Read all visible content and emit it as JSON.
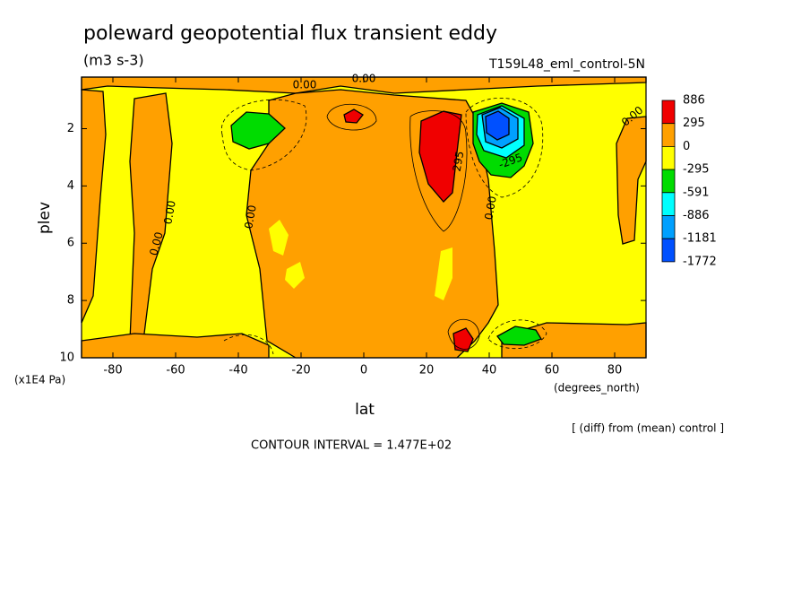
{
  "chart_data": {
    "type": "contour",
    "title": "poleward geopotential flux transient eddy",
    "subtitle": "(m3 s-3)",
    "run_label": "T159L48_eml_control-5N",
    "x_label": "lat",
    "y_label": "plev",
    "x_units": "(degrees_north)",
    "y_units": "(x1E4 Pa)",
    "footnote": "[ (diff) from (mean) control ]",
    "contour_interval": "CONTOUR INTERVAL = 1.477E+02",
    "xlim": [
      -90,
      90
    ],
    "ylim": [
      10,
      0.2
    ],
    "xticks": [
      -80,
      -60,
      -40,
      -20,
      0,
      20,
      40,
      60,
      80
    ],
    "yticks": [
      2,
      4,
      6,
      8,
      10
    ],
    "colorbar": {
      "levels": [
        886,
        295,
        0,
        -295,
        -591,
        -886,
        -1181,
        -1772
      ],
      "colors": [
        "#f00000",
        "#ffa000",
        "#ffff00",
        "#00dc00",
        "#00ffff",
        "#00a0ff",
        "#0050ff"
      ]
    },
    "contour_labels": [
      "0.00",
      "0.00",
      "0.00",
      "0.00",
      "0.00",
      "0.00",
      "0.00",
      "295",
      "-295"
    ]
  }
}
